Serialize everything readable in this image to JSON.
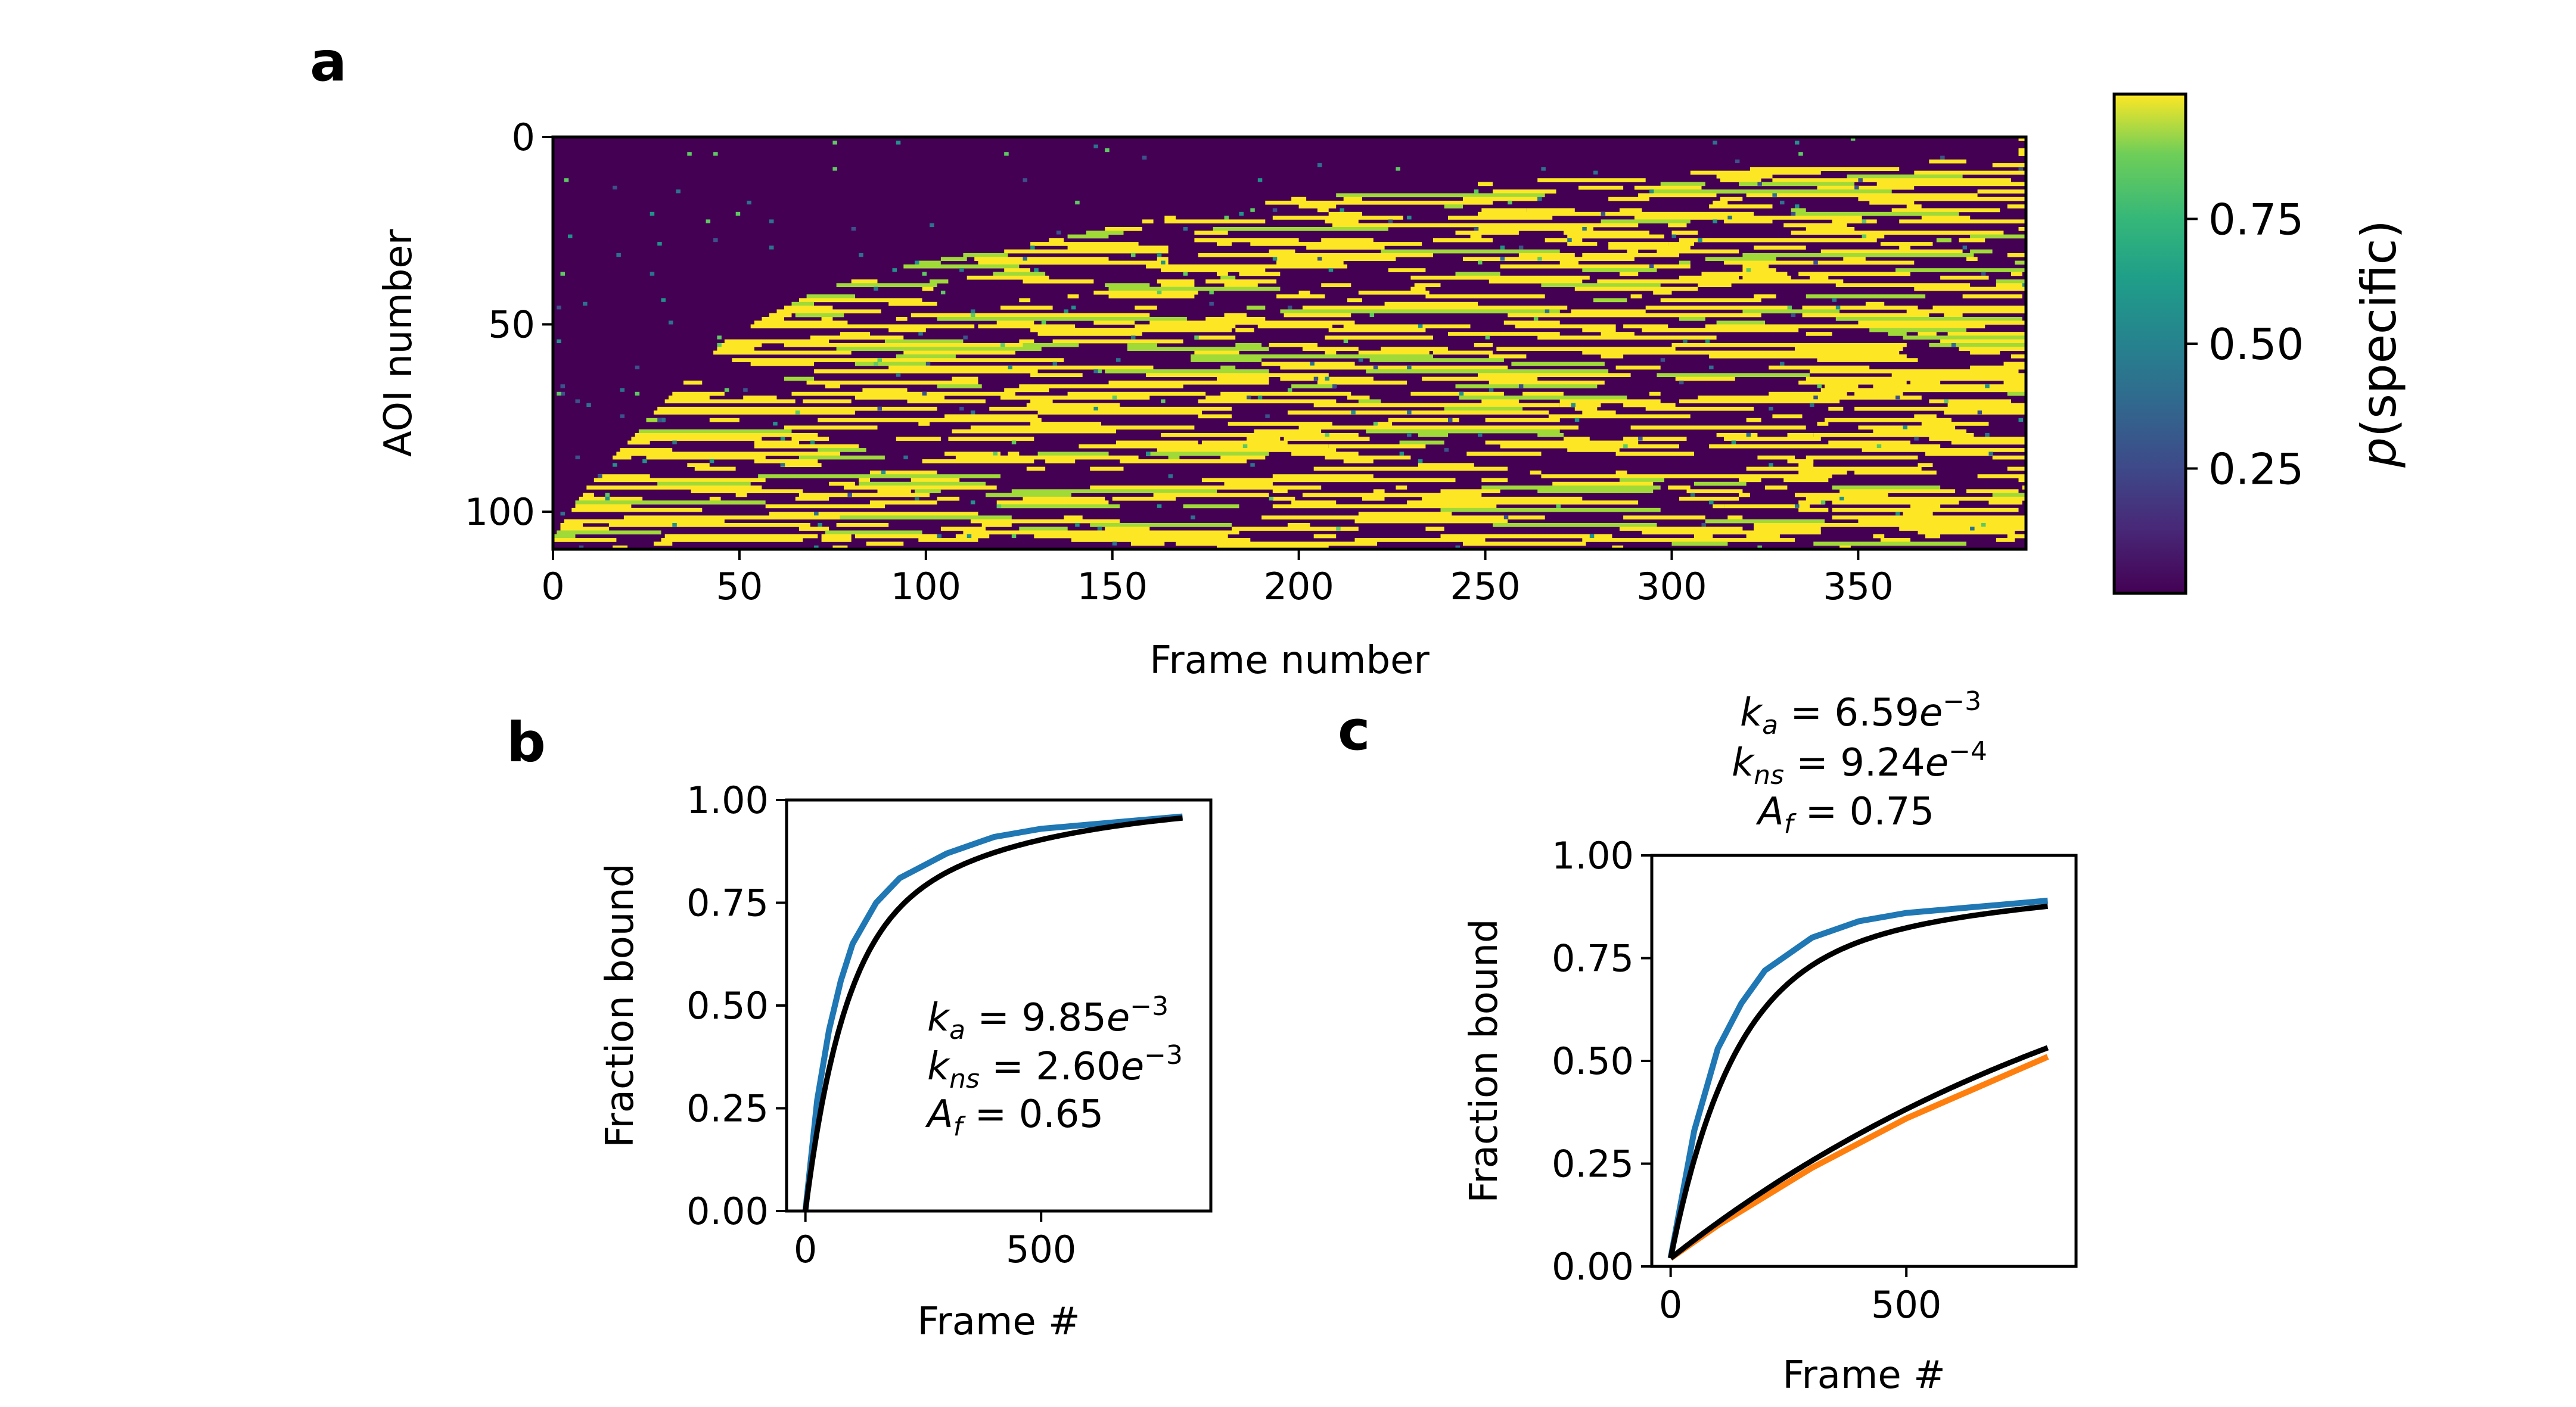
{
  "panels": {
    "a": "a",
    "b": "b",
    "c": "c"
  },
  "colors": {
    "blue": "#1f77b4",
    "orange": "#ff7f0e",
    "fit": "#000000",
    "heat_low": "#440154",
    "heat_high": "#fde725"
  },
  "chart_data": [
    {
      "type": "heatmap",
      "panel": "a",
      "xlabel": "Frame number",
      "ylabel": "AOI number",
      "xlim": [
        0,
        395
      ],
      "ylim": [
        110,
        0
      ],
      "xticks": [
        0,
        50,
        100,
        150,
        200,
        250,
        300,
        350
      ],
      "yticks": [
        0,
        50,
        100
      ],
      "n_rows": 110,
      "n_cols": 395,
      "colorbar": {
        "label": "p(specific)",
        "ticks": [
          "0.25",
          "0.50",
          "0.75"
        ],
        "range": [
          0,
          1
        ],
        "colormap": "viridis"
      },
      "arrival_front": [
        [
          0,
          110
        ],
        [
          10,
          95
        ],
        [
          25,
          78
        ],
        [
          40,
          62
        ],
        [
          50,
          53
        ],
        [
          60,
          47
        ],
        [
          75,
          40
        ],
        [
          100,
          33
        ],
        [
          130,
          28
        ],
        [
          160,
          22
        ],
        [
          200,
          16
        ],
        [
          250,
          12
        ],
        [
          300,
          9
        ],
        [
          395,
          5
        ]
      ]
    },
    {
      "type": "line",
      "panel": "b",
      "xlabel": "Frame #",
      "ylabel": "Fraction bound",
      "xlim": [
        -40,
        860
      ],
      "ylim": [
        0,
        1
      ],
      "xticks": [
        0,
        500
      ],
      "yticks": [
        "0.00",
        "0.25",
        "0.50",
        "0.75",
        "1.00"
      ],
      "params": {
        "ka": 0.00985,
        "kns": 0.0026,
        "Af": 0.65,
        "x_max": 800
      },
      "annotations": [
        "k_a = 9.85e^-3",
        "k_ns = 2.60e^-3",
        "A_f = 0.65"
      ],
      "series": [
        {
          "color": "blue",
          "x": [
            0,
            25,
            50,
            75,
            100,
            150,
            200,
            300,
            400,
            500,
            600,
            700,
            800
          ],
          "y": [
            0.0,
            0.27,
            0.44,
            0.56,
            0.65,
            0.75,
            0.81,
            0.87,
            0.91,
            0.93,
            0.94,
            0.95,
            0.96
          ]
        }
      ]
    },
    {
      "type": "line",
      "panel": "c",
      "xlabel": "Frame #",
      "ylabel": "Fraction bound",
      "xlim": [
        -40,
        860
      ],
      "ylim": [
        0,
        1
      ],
      "xticks": [
        0,
        500
      ],
      "yticks": [
        "0.00",
        "0.25",
        "0.50",
        "0.75",
        "1.00"
      ],
      "params": {
        "ka": 0.00659,
        "kns": 0.000924,
        "Af": 0.75,
        "x_max": 800
      },
      "annotations": [
        "k_a = 6.59e^-3",
        "k_ns = 9.24e^-4",
        "A_f = 0.75"
      ],
      "series": [
        {
          "color": "blue",
          "x": [
            0,
            50,
            100,
            150,
            200,
            300,
            400,
            500,
            600,
            700,
            800
          ],
          "y": [
            0.02,
            0.33,
            0.53,
            0.64,
            0.72,
            0.8,
            0.84,
            0.86,
            0.87,
            0.88,
            0.89
          ]
        },
        {
          "color": "orange",
          "x": [
            0,
            100,
            200,
            300,
            400,
            500,
            600,
            700,
            800
          ],
          "y": [
            0.02,
            0.1,
            0.17,
            0.24,
            0.3,
            0.36,
            0.41,
            0.46,
            0.51
          ]
        }
      ]
    }
  ]
}
